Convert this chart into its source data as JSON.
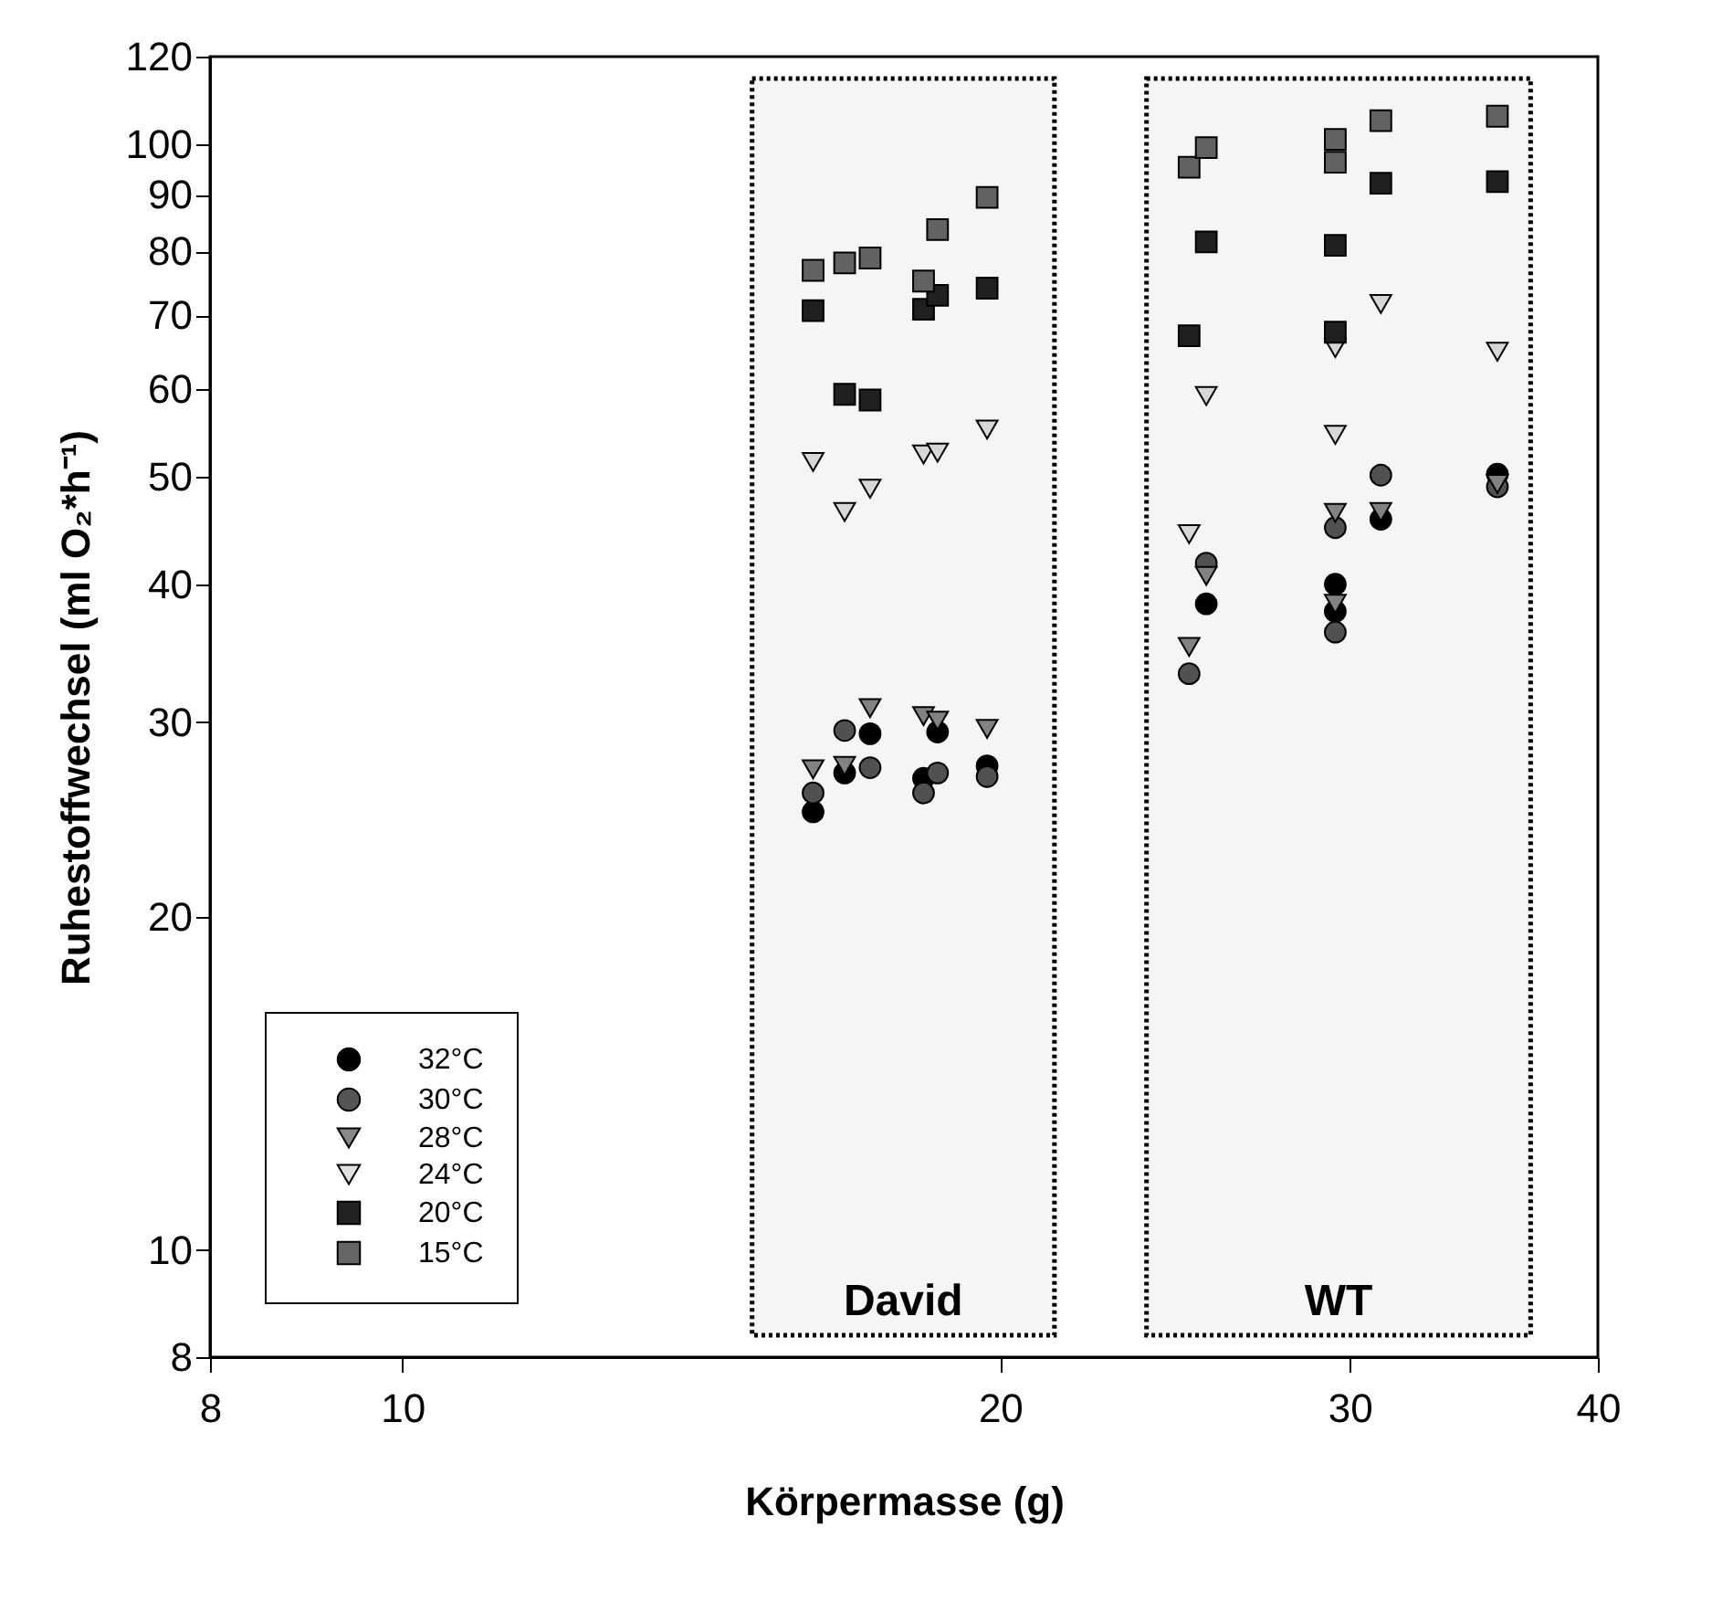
{
  "chart_data": {
    "type": "scatter",
    "xlabel": "Körpermasse (g)",
    "ylabel": "Ruhestoffwechsel (ml O₂*h⁻¹)",
    "log": "xy",
    "xlim": [
      8,
      40
    ],
    "xticks": [
      8,
      10,
      20,
      30,
      40
    ],
    "ylim": [
      8,
      120
    ],
    "yticks": [
      8,
      10,
      20,
      30,
      40,
      50,
      60,
      70,
      80,
      90,
      100,
      120
    ],
    "grid": false,
    "legend": "bottom left",
    "series": [
      {
        "name": "32°C",
        "color": "#000000",
        "marker": "circle",
        "x": [
          16.1,
          16.7,
          17.2,
          18.3,
          18.6,
          19.7,
          25.4,
          29.5,
          29.5,
          31.1,
          35.6
        ],
        "values": [
          24.9,
          27.0,
          29.3,
          26.7,
          29.4,
          27.4,
          38.4,
          40.0,
          37.8,
          45.8,
          50.3
        ]
      },
      {
        "name": "30°C",
        "color": "#555555",
        "marker": "circle",
        "x": [
          16.1,
          16.7,
          17.2,
          18.3,
          18.6,
          19.7,
          24.9,
          25.4,
          29.5,
          29.5,
          31.1,
          35.6
        ],
        "values": [
          25.9,
          29.5,
          27.3,
          25.9,
          27.0,
          26.8,
          33.2,
          41.8,
          45.0,
          36.2,
          50.2,
          49.0
        ]
      },
      {
        "name": "28°C",
        "color": "#888888",
        "marker": "triangle",
        "x": [
          16.1,
          16.7,
          17.2,
          18.3,
          18.6,
          19.7,
          24.9,
          25.4,
          29.5,
          29.5,
          31.1,
          35.6
        ],
        "values": [
          27.2,
          27.4,
          30.9,
          30.4,
          30.1,
          29.6,
          35.1,
          40.7,
          46.4,
          38.4,
          46.5,
          49.3
        ]
      },
      {
        "name": "24°C",
        "color": "#e0e0e0",
        "marker": "triangle",
        "x": [
          16.1,
          16.7,
          17.2,
          18.3,
          18.6,
          19.7,
          24.9,
          25.4,
          29.5,
          29.5,
          31.1,
          35.6
        ],
        "values": [
          51.6,
          46.5,
          48.8,
          52.4,
          52.6,
          55.2,
          44.4,
          59.2,
          54.6,
          65.4,
          71.7,
          64.9
        ]
      },
      {
        "name": "20°C",
        "color": "#222222",
        "marker": "square",
        "x": [
          16.1,
          16.7,
          17.2,
          18.3,
          18.6,
          19.7,
          24.9,
          25.4,
          29.5,
          29.5,
          31.1,
          35.6
        ],
        "values": [
          70.7,
          59.4,
          58.7,
          70.9,
          73.0,
          74.1,
          67.1,
          81.6,
          81.0,
          67.6,
          92.2,
          92.5
        ]
      },
      {
        "name": "15°C",
        "color": "#666666",
        "marker": "square",
        "x": [
          16.1,
          16.7,
          17.2,
          18.3,
          18.6,
          19.7,
          24.9,
          25.4,
          29.5,
          29.5,
          31.1,
          35.6
        ],
        "values": [
          76.9,
          78.1,
          78.9,
          75.2,
          83.7,
          89.5,
          95.3,
          99.3,
          101,
          96.3,
          105,
          106
        ]
      }
    ],
    "bands": [
      {
        "axis": "x",
        "from": 15.0,
        "to": 21.3,
        "label": "David"
      },
      {
        "axis": "x",
        "from": 23.7,
        "to": 37.0,
        "label": "WT"
      }
    ]
  }
}
